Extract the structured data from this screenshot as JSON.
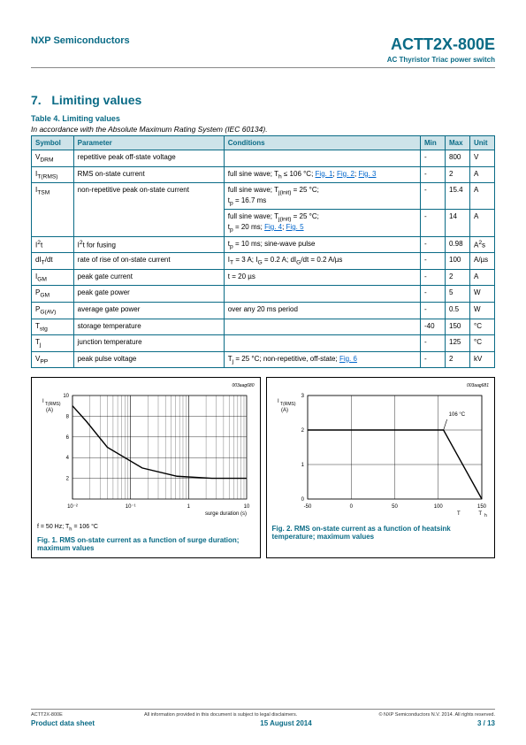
{
  "header": {
    "company": "NXP Semiconductors",
    "product": "ACTT2X-800E",
    "subtitle": "AC Thyristor Triac power switch"
  },
  "section": {
    "number": "7.",
    "title": "Limiting values",
    "table_label": "Table 4.    Limiting values",
    "table_caption": "In accordance with the Absolute Maximum Rating System (IEC 60134)."
  },
  "table": {
    "headers": [
      "Symbol",
      "Parameter",
      "Conditions",
      "Min",
      "Max",
      "Unit"
    ],
    "rows": [
      {
        "sym": "V<sub>DRM</sub>",
        "param": "repetitive peak off-state voltage",
        "cond": "",
        "min": "-",
        "max": "800",
        "unit": "V"
      },
      {
        "sym": "I<sub>T(RMS)</sub>",
        "param": "RMS on-state current",
        "cond": "full sine wave; T<sub>h</sub> ≤ 106 °C; <a class='link'>Fig. 1</a>; <a class='link'>Fig. 2</a>; <a class='link'>Fig. 3</a>",
        "min": "-",
        "max": "2",
        "unit": "A"
      },
      {
        "sym": "I<sub>TSM</sub>",
        "param": "non-repetitive peak on-state current",
        "cond": "full sine wave; T<sub>j(init)</sub> = 25 °C;<br>t<sub>p</sub> = 16.7 ms",
        "min": "-",
        "max": "15.4",
        "unit": "A",
        "rowspan": 2
      },
      {
        "sym": "",
        "param": "",
        "cond": "full sine wave; T<sub>j(init)</sub> = 25 °C;<br>t<sub>p</sub> = 20 ms; <a class='link'>Fig. 4</a>; <a class='link'>Fig. 5</a>",
        "min": "-",
        "max": "14",
        "unit": "A"
      },
      {
        "sym": "I<sup>2</sup>t",
        "param": "I<sup>2</sup>t for fusing",
        "cond": "t<sub>p</sub> = 10 ms; sine-wave pulse",
        "min": "-",
        "max": "0.98",
        "unit": "A<sup>2</sup>s"
      },
      {
        "sym": "dI<sub>T</sub>/dt",
        "param": "rate of rise of on-state current",
        "cond": "I<sub>T</sub> = 3 A; I<sub>G</sub> = 0.2 A; dI<sub>G</sub>/dt = 0.2 A/µs",
        "min": "-",
        "max": "100",
        "unit": "A/µs"
      },
      {
        "sym": "I<sub>GM</sub>",
        "param": "peak gate current",
        "cond": "t = 20 µs",
        "min": "-",
        "max": "2",
        "unit": "A"
      },
      {
        "sym": "P<sub>GM</sub>",
        "param": "peak gate power",
        "cond": "",
        "min": "-",
        "max": "5",
        "unit": "W"
      },
      {
        "sym": "P<sub>G(AV)</sub>",
        "param": "average gate power",
        "cond": "over any 20 ms period",
        "min": "-",
        "max": "0.5",
        "unit": "W"
      },
      {
        "sym": "T<sub>stg</sub>",
        "param": "storage temperature",
        "cond": "",
        "min": "-40",
        "max": "150",
        "unit": "°C"
      },
      {
        "sym": "T<sub>j</sub>",
        "param": "junction temperature",
        "cond": "",
        "min": "-",
        "max": "125",
        "unit": "°C"
      },
      {
        "sym": "V<sub>PP</sub>",
        "param": "peak pulse voltage",
        "cond": "T<sub>j</sub> = 25 °C; non-repetitive, off-state; <a class='link'>Fig. 6</a>",
        "min": "-",
        "max": "2",
        "unit": "kV"
      }
    ]
  },
  "fig1": {
    "id": "003aag680",
    "yticks": [
      2,
      4,
      6,
      8,
      10
    ],
    "ymax": 10,
    "xlabels": [
      "10⁻²",
      "10⁻¹",
      "1",
      "10"
    ],
    "ylabel": "I<sub>T(RMS)</sub><br>(A)",
    "xlabel": "surge duration (s)",
    "points": [
      [
        0,
        0.9
      ],
      [
        0.08,
        0.75
      ],
      [
        0.2,
        0.5
      ],
      [
        0.4,
        0.3
      ],
      [
        0.6,
        0.22
      ],
      [
        0.8,
        0.2
      ],
      [
        1,
        0.2
      ]
    ],
    "note": "f = 50 Hz; T<sub>h</sub> = 106 °C",
    "caption": "Fig. 1.   RMS on-state current as a function of surge duration; maximum values"
  },
  "fig2": {
    "id": "003aag681",
    "yticks": [
      1,
      2,
      3
    ],
    "ymax": 3,
    "xticks": [
      -50,
      0,
      50,
      100,
      150
    ],
    "ylabel": "I<sub>T(RMS)</sub><br>(A)",
    "xlabel": "T<sub>h</sub> (°C)",
    "label106": "106 °C",
    "points": [
      [
        0,
        0.667
      ],
      [
        0.78,
        0.667
      ],
      [
        1,
        0
      ]
    ],
    "caption": "Fig. 2.   RMS on-state current as a function of heatsink temperature; maximum values"
  },
  "footer": {
    "left_small": "ACTT2X-800E",
    "mid_small": "All information provided in this document is subject to legal disclaimers.",
    "right_small": "© NXP Semiconductors N.V. 2014. All rights reserved.",
    "left": "Product data sheet",
    "mid": "15 August 2014",
    "right": "3 / 13"
  },
  "colors": {
    "accent": "#0a6b86",
    "header_bg": "#cde3e9",
    "link": "#0066cc",
    "grid": "#000000"
  }
}
